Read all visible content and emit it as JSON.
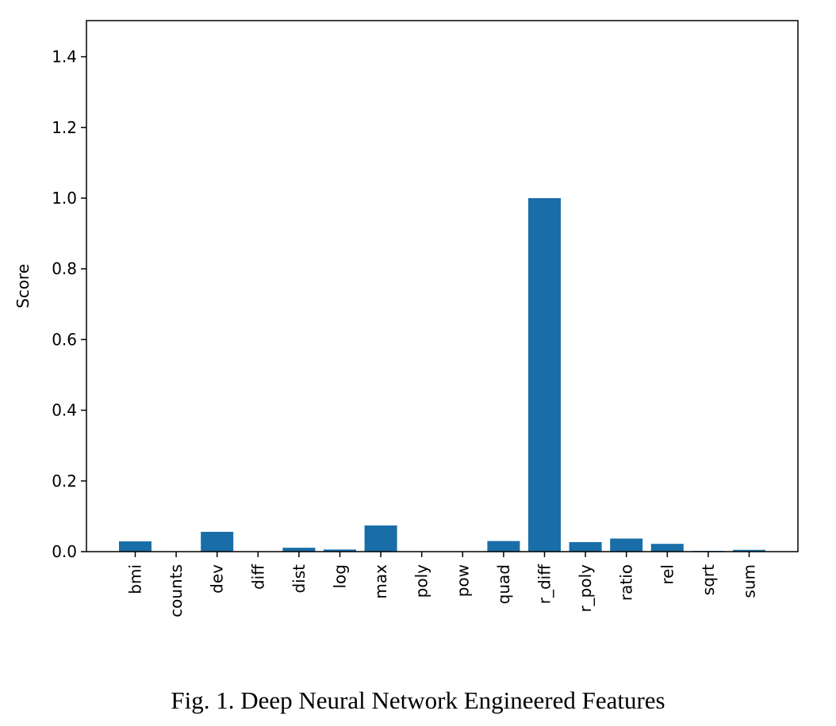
{
  "chart_data": {
    "type": "bar",
    "title": "",
    "xlabel": "",
    "ylabel": "Score",
    "ylim": [
      0,
      1.5
    ],
    "yticks": [
      "0.0",
      "0.2",
      "0.4",
      "0.6",
      "0.8",
      "1.0",
      "1.2",
      "1.4"
    ],
    "grid": false,
    "bar_color": "#1a6ea8",
    "categories": [
      "bmi",
      "counts",
      "dev",
      "diff",
      "dist",
      "log",
      "max",
      "poly",
      "pow",
      "quad",
      "r_diff",
      "r_poly",
      "ratio",
      "rel",
      "sqrt",
      "sum"
    ],
    "values": [
      0.029,
      0.001,
      0.056,
      0.0,
      0.011,
      0.006,
      0.074,
      0.0,
      0.0,
      0.03,
      1.0,
      0.027,
      0.037,
      0.022,
      0.002,
      0.005
    ]
  },
  "caption": "Fig. 1.  Deep Neural Network Engineered Features"
}
